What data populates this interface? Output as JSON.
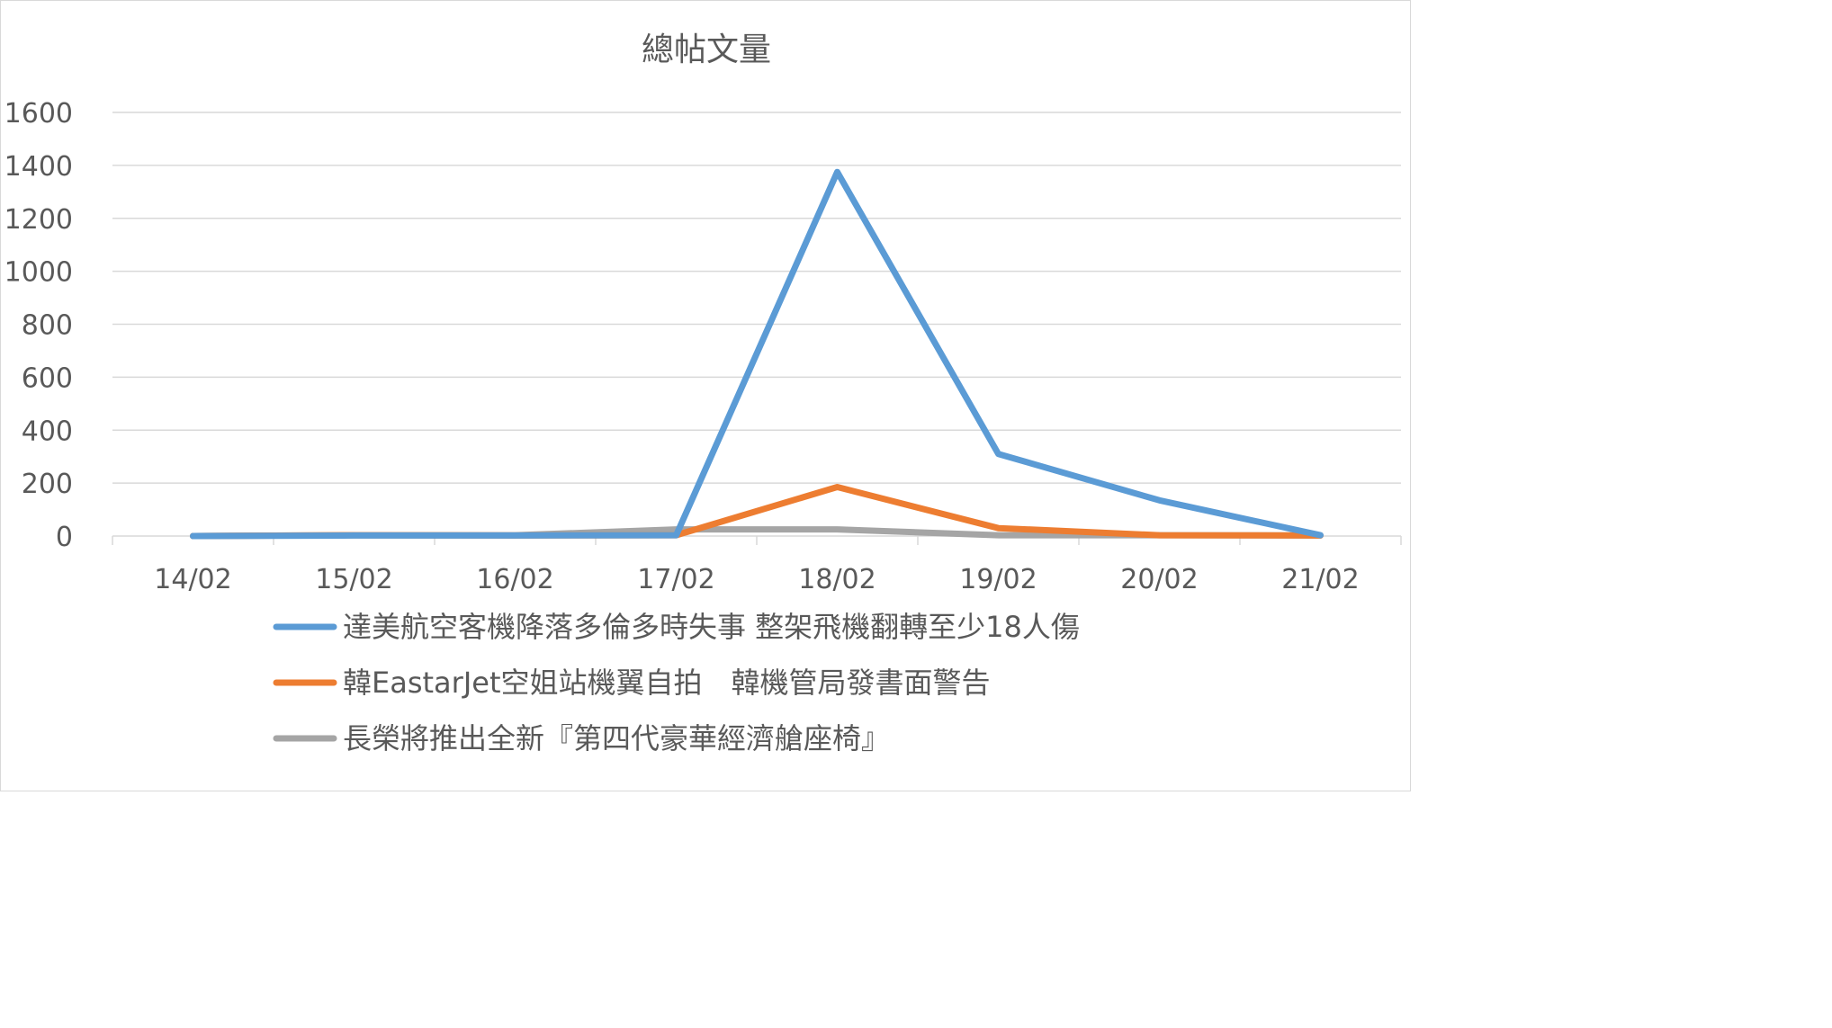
{
  "chart_data": {
    "type": "line",
    "title": "總帖文量",
    "xlabel": "",
    "ylabel": "",
    "categories": [
      "14/02",
      "15/02",
      "16/02",
      "17/02",
      "18/02",
      "19/02",
      "20/02",
      "21/02"
    ],
    "ylim": [
      0,
      1600
    ],
    "yticks": [
      0,
      200,
      400,
      600,
      800,
      1000,
      1200,
      1400,
      1600
    ],
    "grid": "horizontal",
    "legend_position": "bottom",
    "series": [
      {
        "name": "達美航空客機降落多倫多時失事 整架飛機翻轉至少18人傷",
        "color": "#5b9bd5",
        "values": [
          0,
          2,
          2,
          3,
          1375,
          310,
          135,
          3
        ]
      },
      {
        "name": "韓EastarJet空姐站機翼自拍　韓機管局發書面警告",
        "color": "#ed7d31",
        "values": [
          0,
          3,
          2,
          3,
          185,
          30,
          3,
          2
        ]
      },
      {
        "name": "長榮將推出全新『第四代豪華經濟艙座椅』",
        "color": "#a5a5a5",
        "values": [
          0,
          3,
          3,
          25,
          25,
          3,
          3,
          2
        ]
      }
    ]
  }
}
